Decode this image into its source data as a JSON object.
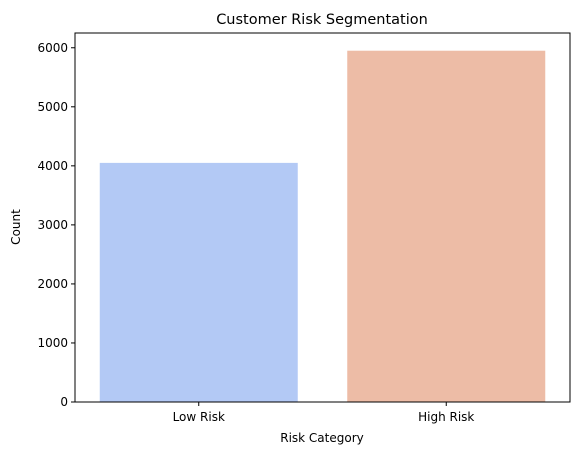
{
  "chart_data": {
    "type": "bar",
    "title": "Customer Risk Segmentation",
    "xlabel": "Risk Category",
    "ylabel": "Count",
    "categories": [
      "Low Risk",
      "High Risk"
    ],
    "values": [
      4050,
      5950
    ],
    "colors": [
      "#b3c9f5",
      "#edbca6"
    ],
    "ylim": [
      0,
      6250
    ],
    "yticks": [
      0,
      1000,
      2000,
      3000,
      4000,
      5000,
      6000
    ],
    "ytick_labels": [
      "0",
      "1000",
      "2000",
      "3000",
      "4000",
      "5000",
      "6000"
    ],
    "grid": false,
    "legend": "none"
  }
}
